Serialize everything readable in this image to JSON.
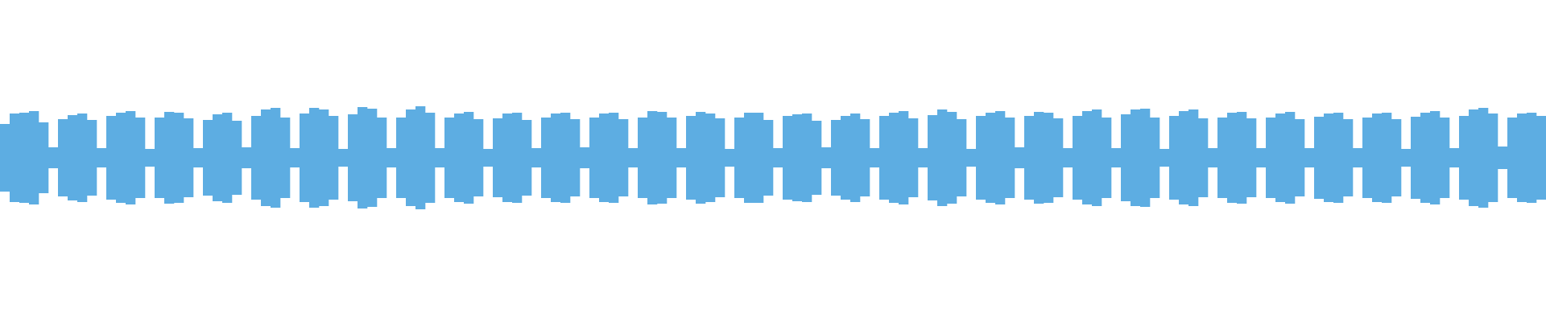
{
  "chart_data": {
    "type": "waveform",
    "color": "#5dade2",
    "ylim": [
      -1,
      1
    ],
    "values": [
      0.42,
      0.55,
      0.56,
      0.58,
      0.44,
      0.13,
      0.48,
      0.53,
      0.55,
      0.47,
      0.12,
      0.52,
      0.56,
      0.58,
      0.5,
      0.11,
      0.5,
      0.57,
      0.56,
      0.49,
      0.12,
      0.47,
      0.54,
      0.56,
      0.46,
      0.13,
      0.52,
      0.6,
      0.62,
      0.5,
      0.12,
      0.55,
      0.62,
      0.6,
      0.52,
      0.11,
      0.54,
      0.63,
      0.61,
      0.5,
      0.12,
      0.5,
      0.6,
      0.64,
      0.56,
      0.12,
      0.5,
      0.55,
      0.57,
      0.48,
      0.11,
      0.49,
      0.55,
      0.56,
      0.47,
      0.12,
      0.5,
      0.55,
      0.56,
      0.48,
      0.13,
      0.5,
      0.55,
      0.56,
      0.48,
      0.12,
      0.5,
      0.58,
      0.57,
      0.5,
      0.12,
      0.52,
      0.57,
      0.55,
      0.49,
      0.11,
      0.5,
      0.56,
      0.56,
      0.47,
      0.12,
      0.52,
      0.54,
      0.55,
      0.46,
      0.13,
      0.47,
      0.52,
      0.55,
      0.48,
      0.12,
      0.52,
      0.56,
      0.58,
      0.49,
      0.12,
      0.53,
      0.6,
      0.57,
      0.48,
      0.11,
      0.52,
      0.56,
      0.58,
      0.5,
      0.13,
      0.52,
      0.57,
      0.56,
      0.49,
      0.12,
      0.52,
      0.58,
      0.6,
      0.5,
      0.12,
      0.54,
      0.6,
      0.61,
      0.5,
      0.11,
      0.52,
      0.58,
      0.6,
      0.49,
      0.12,
      0.5,
      0.56,
      0.57,
      0.49,
      0.12,
      0.5,
      0.55,
      0.57,
      0.48,
      0.12,
      0.51,
      0.55,
      0.56,
      0.48,
      0.12,
      0.5,
      0.55,
      0.56,
      0.48,
      0.11,
      0.51,
      0.56,
      0.58,
      0.5,
      0.12,
      0.52,
      0.6,
      0.62,
      0.55,
      0.14,
      0.5,
      0.55,
      0.56,
      0.52
    ]
  }
}
